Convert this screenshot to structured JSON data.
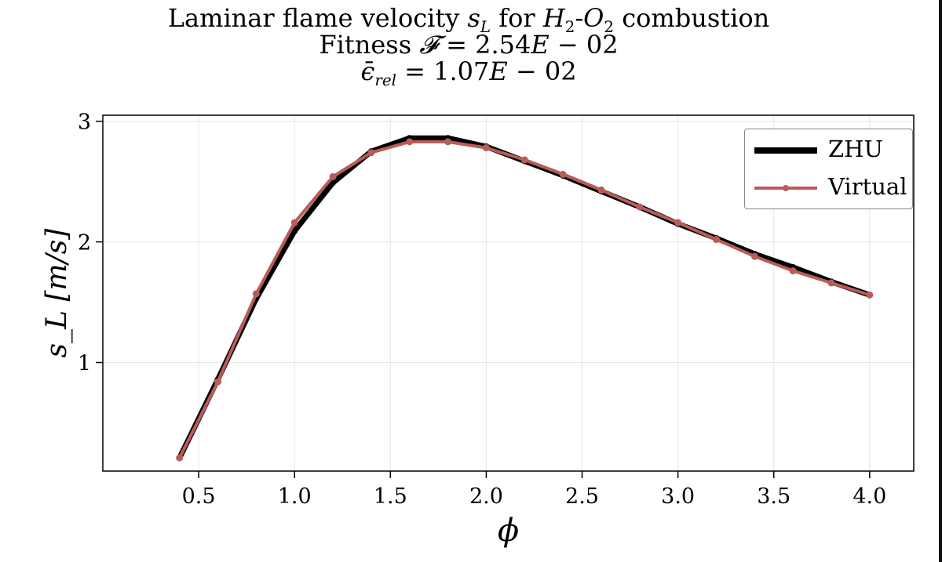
{
  "chart_data": {
    "type": "line",
    "title": {
      "line1_prefix": "Laminar flame velocity ",
      "line1_sL": "s",
      "line1_sL_sub": "L",
      "line1_mid": " for ",
      "line1_h": "H",
      "line1_h_sub": "2",
      "line1_dash": "-",
      "line1_o": "O",
      "line1_o_sub": "2",
      "line1_suffix": " combustion",
      "line2_prefix": "Fitness ",
      "line2_symbol": "𝓕",
      "line2_value": " = 2.54",
      "line2_exp_e": "E",
      "line2_exp": " − 02",
      "line3_symbol": "ϵ̄",
      "line3_sub": "rel",
      "line3_value": " = 1.07",
      "line3_exp_e": "E",
      "line3_exp": " − 02"
    },
    "xlabel": "ϕ",
    "ylabel": "s_L [m/s]",
    "xlim": [
      0.0,
      4.23
    ],
    "ylim": [
      0.1,
      3.05
    ],
    "x_ticks": [
      0.5,
      1.0,
      1.5,
      2.0,
      2.5,
      3.0,
      3.5,
      4.0
    ],
    "x_tick_labels": [
      "0.5",
      "1.0",
      "1.5",
      "2.0",
      "2.5",
      "3.0",
      "3.5",
      "4.0"
    ],
    "y_ticks": [
      1,
      2,
      3
    ],
    "y_tick_labels": [
      "1",
      "2",
      "3"
    ],
    "grid": true,
    "legend_position": "top-right",
    "x": [
      0.4,
      0.6,
      0.8,
      1.0,
      1.2,
      1.4,
      1.6,
      1.8,
      2.0,
      2.2,
      2.4,
      2.6,
      2.8,
      3.0,
      3.2,
      3.4,
      3.6,
      3.8,
      4.0
    ],
    "series": [
      {
        "name": "ZHU",
        "color": "#000000",
        "values": [
          0.21,
          0.86,
          1.53,
          2.09,
          2.49,
          2.75,
          2.86,
          2.86,
          2.79,
          2.67,
          2.55,
          2.42,
          2.29,
          2.15,
          2.03,
          1.9,
          1.79,
          1.67,
          1.56
        ]
      },
      {
        "name": "Virtual",
        "color": "#b85c5a",
        "values": [
          0.21,
          0.84,
          1.57,
          2.16,
          2.54,
          2.74,
          2.83,
          2.83,
          2.78,
          2.68,
          2.56,
          2.43,
          2.29,
          2.16,
          2.02,
          1.88,
          1.76,
          1.66,
          1.56
        ]
      }
    ]
  }
}
